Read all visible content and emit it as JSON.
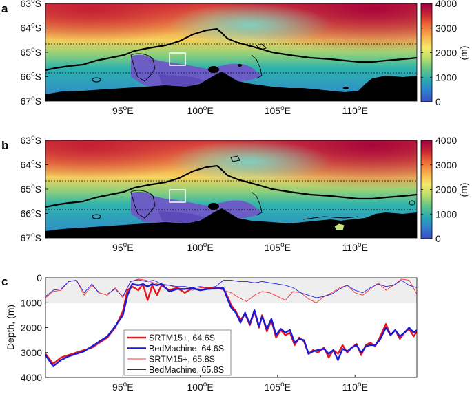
{
  "figure": {
    "panels": [
      {
        "letter": "a",
        "lat_ticks": [
          "63",
          "64",
          "65",
          "66",
          "67"
        ],
        "lon_ticks": [
          "95",
          "100",
          "105",
          "110"
        ],
        "colorbar_ticks": [
          "4000",
          "3000",
          "2000",
          "1000",
          "0"
        ],
        "colorbar_label": "(m)",
        "dashed_lats": [
          "64.6",
          "65.8"
        ]
      },
      {
        "letter": "b",
        "lat_ticks": [
          "63",
          "64",
          "65",
          "66",
          "67"
        ],
        "lon_ticks": [
          "95",
          "100",
          "105",
          "110"
        ],
        "colorbar_ticks": [
          "4000",
          "3000",
          "2000",
          "1000",
          "0"
        ],
        "colorbar_label": "(m)",
        "dashed_lats": [
          "64.6",
          "65.8"
        ]
      },
      {
        "letter": "c"
      }
    ],
    "degree_symbol": "o",
    "lat_hemisphere": "S",
    "lon_hemisphere": "E"
  },
  "colormap": [
    "#3b4cc0",
    "#2f7fcf",
    "#2aa9b0",
    "#60c58a",
    "#b9de6b",
    "#f5ea6a",
    "#f9b24e",
    "#ee6a36",
    "#c92433",
    "#9e0142"
  ],
  "chart_data": [
    {
      "type": "heatmap",
      "title": "",
      "xlim": [
        90,
        114
      ],
      "ylim": [
        67,
        63
      ],
      "zlim": [
        0,
        4000
      ],
      "colorbar_label": "(m)"
    },
    {
      "type": "heatmap",
      "title": "",
      "xlim": [
        90,
        114
      ],
      "ylim": [
        67,
        63
      ],
      "zlim": [
        0,
        4000
      ],
      "colorbar_label": "(m)"
    },
    {
      "type": "line",
      "xlabel": "",
      "ylabel": "Depth, (m)",
      "xlim": [
        90,
        114
      ],
      "ylim": [
        4000,
        0
      ],
      "x_ticks": [
        "95",
        "100",
        "105",
        "110"
      ],
      "y_ticks": [
        "0",
        "1000",
        "2000",
        "3000",
        "4000"
      ],
      "shaded_band": [
        0,
        1000
      ],
      "legend_position": "center-left",
      "series": [
        {
          "name": "SRTM15+, 64.6S",
          "color": "#e8141b",
          "width": "thick",
          "x": [
            90,
            90.5,
            91,
            91.5,
            92,
            92.5,
            93,
            93.5,
            94,
            94.5,
            95,
            95.3,
            95.6,
            96,
            96.3,
            96.6,
            96.9,
            97.2,
            97.5,
            98,
            98.5,
            99,
            99.5,
            100,
            100.5,
            101,
            101.5,
            101.8,
            102,
            102.3,
            102.6,
            102.9,
            103.2,
            103.5,
            103.8,
            104,
            104.3,
            104.6,
            104.9,
            105.2,
            105.5,
            105.8,
            106.1,
            106.4,
            106.7,
            107,
            107.3,
            107.6,
            108,
            108.3,
            108.6,
            108.9,
            109.2,
            109.5,
            109.8,
            110.1,
            110.4,
            110.7,
            111,
            111.3,
            111.6,
            112,
            112.3,
            112.6,
            112.9,
            113.2,
            113.5,
            113.8,
            114
          ],
          "y": [
            3050,
            3450,
            3200,
            3100,
            3000,
            2900,
            2800,
            2600,
            2400,
            2000,
            1350,
            500,
            350,
            500,
            250,
            900,
            300,
            700,
            300,
            500,
            400,
            600,
            420,
            500,
            420,
            420,
            430,
            800,
            1100,
            1350,
            1700,
            1450,
            1900,
            1350,
            2000,
            1500,
            2150,
            1700,
            2400,
            2100,
            2300,
            2200,
            2700,
            2400,
            2550,
            3050,
            2900,
            3000,
            2800,
            3200,
            2900,
            3050,
            2700,
            3000,
            2800,
            2650,
            3100,
            2700,
            2600,
            2750,
            2400,
            1850,
            2300,
            2100,
            2450,
            2200,
            2050,
            2350,
            2150
          ]
        },
        {
          "name": "BedMachine, 64.6S",
          "color": "#1a1ad6",
          "width": "thick",
          "x": [
            90,
            90.5,
            91,
            91.5,
            92,
            92.5,
            93,
            93.5,
            94,
            94.5,
            95,
            95.3,
            95.6,
            96,
            96.3,
            96.6,
            96.9,
            97.2,
            97.5,
            98,
            98.5,
            99,
            99.5,
            100,
            100.5,
            101,
            101.5,
            101.8,
            102,
            102.3,
            102.6,
            102.9,
            103.2,
            103.5,
            103.8,
            104,
            104.3,
            104.6,
            104.9,
            105.2,
            105.5,
            105.8,
            106.1,
            106.4,
            106.7,
            107,
            107.3,
            107.6,
            108,
            108.3,
            108.6,
            108.9,
            109.2,
            109.5,
            109.8,
            110.1,
            110.4,
            110.7,
            111,
            111.3,
            111.6,
            112,
            112.3,
            112.6,
            112.9,
            113.2,
            113.5,
            113.8,
            114
          ],
          "y": [
            3100,
            3550,
            3300,
            3150,
            3050,
            2950,
            2750,
            2550,
            2350,
            1950,
            1500,
            700,
            250,
            300,
            250,
            350,
            250,
            300,
            250,
            550,
            450,
            450,
            420,
            500,
            450,
            430,
            420,
            900,
            1200,
            1400,
            1800,
            1400,
            1850,
            1300,
            1950,
            1550,
            2050,
            1650,
            2300,
            2050,
            2200,
            2100,
            2600,
            2450,
            2500,
            3050,
            2950,
            2900,
            2850,
            3050,
            2900,
            3300,
            2850,
            2950,
            2800,
            2700,
            3000,
            2750,
            2700,
            2700,
            2500,
            2000,
            2300,
            2100,
            2350,
            2200,
            2000,
            2200,
            2100
          ]
        },
        {
          "name": "SRTM15+, 65.8S",
          "color": "#ff3030",
          "width": "thin",
          "x": [
            90,
            90.5,
            91,
            91.5,
            92,
            92.5,
            93,
            93.5,
            94,
            94.5,
            95,
            95.5,
            96,
            96.5,
            97,
            97.5,
            98,
            98.5,
            99,
            99.5,
            100,
            100.5,
            101,
            101.5,
            102,
            102.5,
            103,
            103.5,
            104,
            104.5,
            105,
            105.5,
            106,
            106.5,
            107,
            107.5,
            108,
            108.5,
            109,
            109.5,
            110,
            110.5,
            111,
            111.5,
            112,
            112.5,
            113,
            113.5,
            114
          ],
          "y": [
            800,
            550,
            500,
            150,
            100,
            700,
            300,
            600,
            700,
            400,
            800,
            150,
            50,
            100,
            200,
            300,
            300,
            400,
            350,
            500,
            400,
            400,
            400,
            500,
            600,
            800,
            950,
            700,
            550,
            600,
            750,
            900,
            550,
            600,
            850,
            1000,
            750,
            600,
            400,
            300,
            600,
            700,
            450,
            200,
            500,
            300,
            50,
            100,
            650
          ]
        },
        {
          "name": "BedMachine, 65.8S",
          "color": "#2020e0",
          "width": "thin",
          "x": [
            90,
            90.5,
            91,
            91.5,
            92,
            92.5,
            93,
            93.5,
            94,
            94.5,
            95,
            95.5,
            96,
            96.5,
            97,
            97.5,
            98,
            98.5,
            99,
            99.5,
            100,
            100.5,
            101,
            101.5,
            102,
            102.5,
            103,
            103.5,
            104,
            104.5,
            105,
            105.5,
            106,
            106.5,
            107,
            107.5,
            108,
            108.5,
            109,
            109.5,
            110,
            110.5,
            111,
            111.5,
            112,
            112.5,
            113,
            113.5,
            114
          ],
          "y": [
            750,
            500,
            450,
            150,
            100,
            600,
            250,
            650,
            650,
            450,
            750,
            150,
            80,
            150,
            100,
            250,
            300,
            350,
            350,
            400,
            350,
            400,
            350,
            100,
            100,
            150,
            150,
            200,
            150,
            200,
            250,
            300,
            400,
            600,
            700,
            800,
            750,
            650,
            450,
            300,
            500,
            600,
            400,
            250,
            350,
            300,
            100,
            300,
            400
          ]
        }
      ]
    }
  ]
}
